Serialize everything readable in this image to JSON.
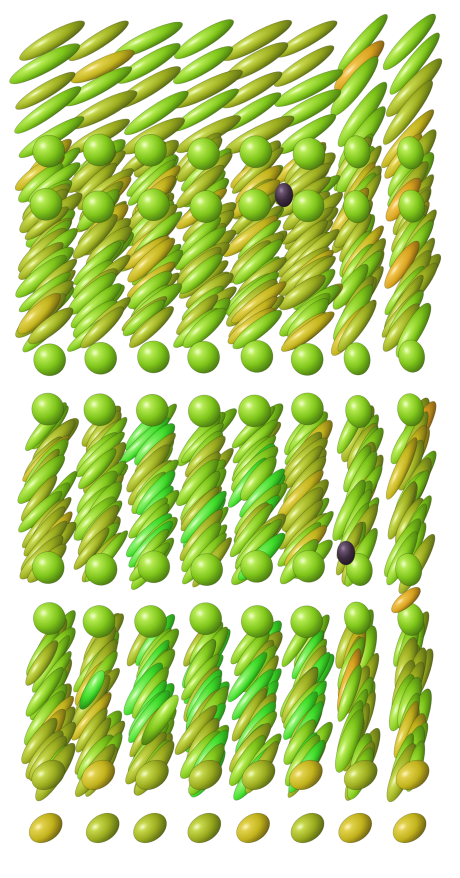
{
  "scene": {
    "kind": "3D tensor glyph field",
    "glyph_shape": "ellipsoid",
    "background_color": "#ffffff",
    "palette": {
      "olive": "#9aab1e",
      "lime": "#7fc61a",
      "bright_green": "#3fdc2a",
      "mustard": "#c2b31c",
      "amber": "#d8a21e",
      "dark_olive": "#4a5a14",
      "dark_purple": "#3b2a3e",
      "highlight": "#f4ffd0"
    }
  }
}
